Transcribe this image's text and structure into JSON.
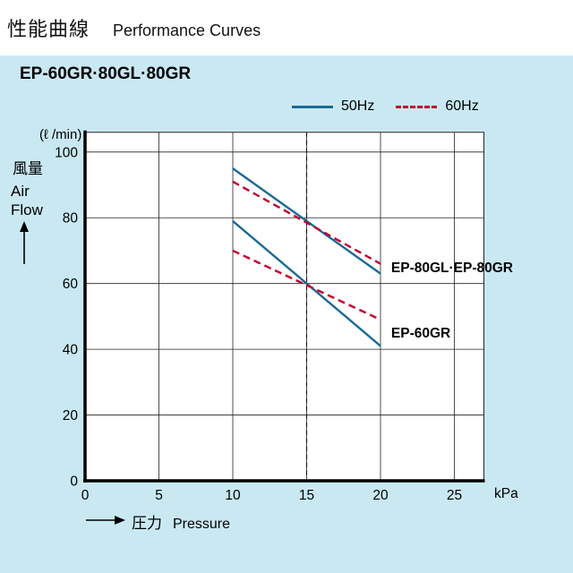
{
  "header": {
    "title_jp": "性能曲線",
    "title_en": "Performance Curves"
  },
  "panel": {
    "title": "EP-60GR·80GL·80GR"
  },
  "legend": {
    "items": [
      {
        "label": "50Hz",
        "style": "solid",
        "color": "#1a6a96"
      },
      {
        "label": "60Hz",
        "style": "dashed",
        "color": "#c3002f"
      }
    ]
  },
  "axes": {
    "y_unit": "(ℓ /min)",
    "y_label_jp": "風量",
    "y_label_en_line1": "Air",
    "y_label_en_line2": "Flow",
    "x_unit": "kPa",
    "x_label_jp": "圧力",
    "x_label_en": "Pressure"
  },
  "chart_data": {
    "type": "line",
    "title": "EP-60GR·80GL·80GR",
    "xlabel": "Pressure (kPa)",
    "ylabel": "Air Flow (ℓ/min)",
    "xlim": [
      0,
      27
    ],
    "ylim": [
      0,
      106
    ],
    "x_ticks": [
      0,
      5,
      10,
      15,
      20,
      25
    ],
    "y_ticks": [
      0,
      20,
      40,
      60,
      80,
      100
    ],
    "grid": true,
    "reference_line_x": 15,
    "legend_position": "top",
    "series": [
      {
        "name": "EP-80GL·EP-80GR",
        "freq": "50Hz",
        "color": "#1a6a96",
        "dash": false,
        "points": [
          [
            10,
            95
          ],
          [
            20,
            63
          ]
        ]
      },
      {
        "name": "EP-80GL·EP-80GR",
        "freq": "60Hz",
        "color": "#c3002f",
        "dash": true,
        "points": [
          [
            10,
            91
          ],
          [
            20,
            66
          ]
        ]
      },
      {
        "name": "EP-60GR",
        "freq": "50Hz",
        "color": "#1a6a96",
        "dash": false,
        "points": [
          [
            10,
            79
          ],
          [
            20,
            41
          ]
        ]
      },
      {
        "name": "EP-60GR",
        "freq": "60Hz",
        "color": "#c3002f",
        "dash": true,
        "points": [
          [
            10,
            70
          ],
          [
            20,
            49
          ]
        ]
      }
    ],
    "annotations": [
      {
        "text": "EP-80GL·EP-80GR",
        "x": 20.6,
        "y": 64
      },
      {
        "text": "EP-60GR",
        "x": 20.6,
        "y": 44
      }
    ]
  }
}
